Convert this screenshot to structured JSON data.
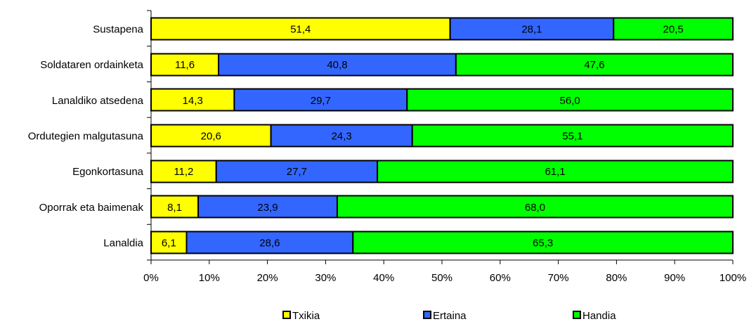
{
  "chart_data": {
    "type": "bar",
    "orientation": "horizontal",
    "stacked": "percent",
    "categories": [
      "Sustapena",
      "Soldataren ordainketa",
      "Lanaldiko atsedena",
      "Ordutegien malgutasuna",
      "Egonkortasuna",
      "Oporrak eta baimenak",
      "Lanaldia"
    ],
    "series": [
      {
        "name": "Txikia",
        "color": "#ffff00",
        "values": [
          51.4,
          11.6,
          14.3,
          20.6,
          11.2,
          8.1,
          6.1
        ],
        "labels": [
          "51,4",
          "11,6",
          "14,3",
          "20,6",
          "11,2",
          "8,1",
          "6,1"
        ]
      },
      {
        "name": "Ertaina",
        "color": "#3366ff",
        "values": [
          28.1,
          40.8,
          29.7,
          24.3,
          27.7,
          23.9,
          28.6
        ],
        "labels": [
          "28,1",
          "40,8",
          "29,7",
          "24,3",
          "27,7",
          "23,9",
          "28,6"
        ]
      },
      {
        "name": "Handia",
        "color": "#00ff00",
        "values": [
          20.5,
          47.6,
          56.0,
          55.1,
          61.1,
          68.0,
          65.3
        ],
        "labels": [
          "20,5",
          "47,6",
          "56,0",
          "55,1",
          "61,1",
          "68,0",
          "65,3"
        ]
      }
    ],
    "xlim": [
      0,
      100
    ],
    "x_ticks": [
      "0%",
      "10%",
      "20%",
      "30%",
      "40%",
      "50%",
      "60%",
      "70%",
      "80%",
      "90%",
      "100%"
    ],
    "grid": false,
    "legend_position": "bottom"
  }
}
